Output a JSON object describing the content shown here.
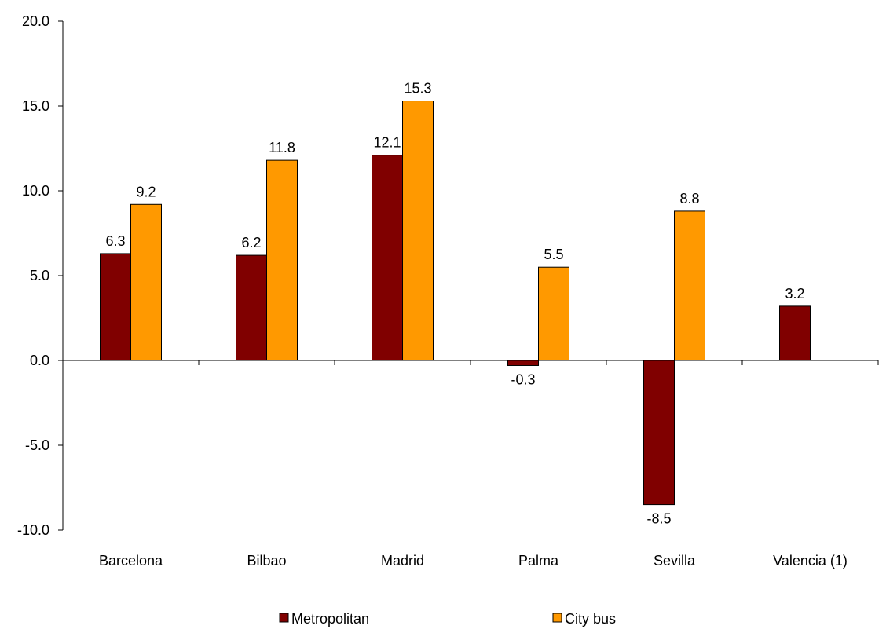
{
  "chart_data": {
    "type": "bar",
    "categories": [
      "Barcelona",
      "Bilbao",
      "Madrid",
      "Palma",
      "Sevilla",
      "Valencia (1)"
    ],
    "series": [
      {
        "name": "Metropolitan",
        "values": [
          6.3,
          6.2,
          12.1,
          -0.3,
          -8.5,
          3.2
        ],
        "labels": [
          "6.3",
          "6.2",
          "12.1",
          "-0.3",
          "-8.5",
          "3.2"
        ],
        "color": "#800000"
      },
      {
        "name": "City bus",
        "values": [
          9.2,
          11.8,
          15.3,
          5.5,
          8.8,
          null
        ],
        "labels": [
          "9.2",
          "11.8",
          "15.3",
          "5.5",
          "8.8",
          null
        ],
        "color": "#FF9900"
      }
    ],
    "ylim": [
      -10,
      20
    ],
    "yticks": [
      20,
      15,
      10,
      5,
      0,
      -5,
      -10
    ],
    "ytick_labels": [
      "20.0",
      "15.0",
      "10.0",
      "5.0",
      "0.0",
      "-5.0",
      "-10.0"
    ],
    "grid": false,
    "legend_position": "bottom",
    "title": "",
    "xlabel": "",
    "ylabel": ""
  }
}
